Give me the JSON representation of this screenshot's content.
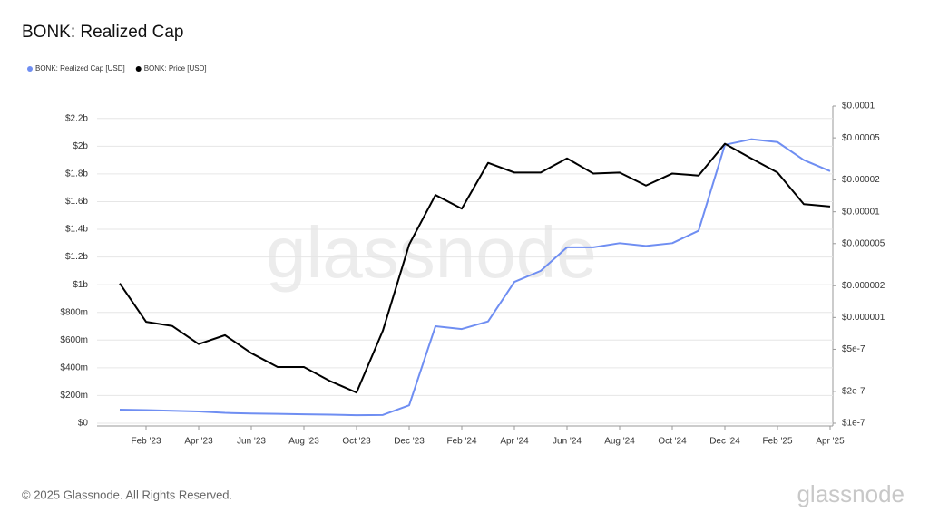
{
  "chart_data": {
    "type": "line",
    "title": "BONK: Realized Cap",
    "x": [
      "2023-01",
      "2023-02",
      "2023-03",
      "2023-04",
      "2023-05",
      "2023-06",
      "2023-07",
      "2023-08",
      "2023-09",
      "2023-10",
      "2023-11",
      "2023-12",
      "2024-01",
      "2024-02",
      "2024-03",
      "2024-04",
      "2024-05",
      "2024-06",
      "2024-07",
      "2024-08",
      "2024-09",
      "2024-10",
      "2024-11",
      "2024-12",
      "2025-01",
      "2025-02",
      "2025-03",
      "2025-04"
    ],
    "xticks": [
      {
        "value": "2023-02",
        "label": "Feb '23"
      },
      {
        "value": "2023-04",
        "label": "Apr '23"
      },
      {
        "value": "2023-06",
        "label": "Jun '23"
      },
      {
        "value": "2023-08",
        "label": "Aug '23"
      },
      {
        "value": "2023-10",
        "label": "Oct '23"
      },
      {
        "value": "2023-12",
        "label": "Dec '23"
      },
      {
        "value": "2024-02",
        "label": "Feb '24"
      },
      {
        "value": "2024-04",
        "label": "Apr '24"
      },
      {
        "value": "2024-06",
        "label": "Jun '24"
      },
      {
        "value": "2024-08",
        "label": "Aug '24"
      },
      {
        "value": "2024-10",
        "label": "Oct '24"
      },
      {
        "value": "2024-12",
        "label": "Dec '24"
      },
      {
        "value": "2025-02",
        "label": "Feb '25"
      },
      {
        "value": "2025-04",
        "label": "Apr '25"
      }
    ],
    "series": [
      {
        "name": "BONK: Realized Cap [USD]",
        "color": "#6f8ef2",
        "axis": "y",
        "values": [
          98000000,
          95000000,
          90000000,
          85000000,
          75000000,
          70000000,
          68000000,
          65000000,
          62000000,
          58000000,
          60000000,
          130000000,
          700000000,
          680000000,
          735000000,
          1020000000,
          1100000000,
          1270000000,
          1270000000,
          1300000000,
          1280000000,
          1300000000,
          1390000000,
          2010000000,
          2050000000,
          2030000000,
          1900000000,
          1820000000
        ]
      },
      {
        "name": "BONK: Price [USD]",
        "color": "#000000",
        "axis": "y2",
        "values": [
          2.1e-06,
          9.1e-07,
          8.3e-07,
          5.6e-07,
          6.8e-07,
          4.6e-07,
          3.4e-07,
          3.4e-07,
          2.5e-07,
          1.95e-07,
          7.5e-07,
          4.9e-06,
          1.44e-05,
          1.07e-05,
          2.9e-05,
          2.35e-05,
          2.35e-05,
          3.2e-05,
          2.3e-05,
          2.35e-05,
          1.77e-05,
          2.3e-05,
          2.2e-05,
          4.4e-05,
          3.2e-05,
          2.35e-05,
          1.18e-05,
          1.12e-05
        ]
      }
    ],
    "ylim": [
      0,
      2290000000
    ],
    "yticks": [
      {
        "value": 0,
        "label": "$0"
      },
      {
        "value": 200000000,
        "label": "$200m"
      },
      {
        "value": 400000000,
        "label": "$400m"
      },
      {
        "value": 600000000,
        "label": "$600m"
      },
      {
        "value": 800000000,
        "label": "$800m"
      },
      {
        "value": 1000000000,
        "label": "$1b"
      },
      {
        "value": 1200000000,
        "label": "$1.2b"
      },
      {
        "value": 1400000000,
        "label": "$1.4b"
      },
      {
        "value": 1600000000,
        "label": "$1.6b"
      },
      {
        "value": 1800000000,
        "label": "$1.8b"
      },
      {
        "value": 2000000000,
        "label": "$2b"
      },
      {
        "value": 2200000000,
        "label": "$2.2b"
      }
    ],
    "y2lim": [
      1e-07,
      0.0001
    ],
    "y2scale": "log",
    "y2ticks": [
      {
        "value": 1e-07,
        "label": "$1e-7"
      },
      {
        "value": 2e-07,
        "label": "$2e-7"
      },
      {
        "value": 5e-07,
        "label": "$5e-7"
      },
      {
        "value": 1e-06,
        "label": "$0.000001"
      },
      {
        "value": 2e-06,
        "label": "$0.000002"
      },
      {
        "value": 5e-06,
        "label": "$0.000005"
      },
      {
        "value": 1e-05,
        "label": "$0.00001"
      },
      {
        "value": 2e-05,
        "label": "$0.00002"
      },
      {
        "value": 5e-05,
        "label": "$0.00005"
      },
      {
        "value": 0.0001,
        "label": "$0.0001"
      }
    ],
    "grid": true,
    "legend": "top-left",
    "watermark": "glassnode",
    "footer": "© 2025 Glassnode. All Rights Reserved.",
    "logo": "glassnode"
  }
}
